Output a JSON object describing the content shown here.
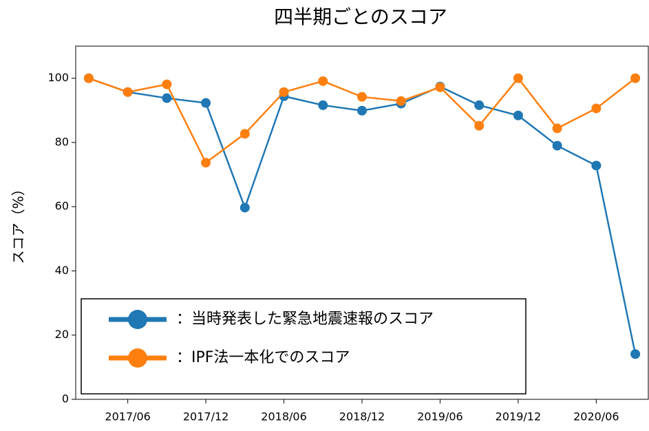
{
  "chart_data": {
    "type": "line",
    "title": "四半期ごとのスコア",
    "ylabel": "スコア（%）",
    "x": [
      "2017/03",
      "2017/06",
      "2017/09",
      "2017/12",
      "2018/03",
      "2018/06",
      "2018/09",
      "2018/12",
      "2019/03",
      "2019/06",
      "2019/09",
      "2019/12",
      "2020/03",
      "2020/06",
      "2020/09"
    ],
    "xlim": [
      "2017/02",
      "2020/10"
    ],
    "xticks": [
      "2017/06",
      "2017/12",
      "2018/06",
      "2018/12",
      "2019/06",
      "2019/12",
      "2020/06"
    ],
    "ylim": [
      0,
      110
    ],
    "yticks": [
      0,
      20,
      40,
      60,
      80,
      100
    ],
    "legend": "lower left",
    "series": [
      {
        "name": "：当時発表した緊急地震速報のスコア",
        "color": "#1f77b4",
        "values": [
          100,
          95.7,
          93.8,
          92.3,
          59.7,
          94.4,
          91.6,
          89.9,
          92.1,
          97.4,
          91.6,
          88.4,
          79,
          72.8,
          14.1
        ]
      },
      {
        "name": "：IPF法一本化でのスコア",
        "color": "#ff7f0e",
        "values": [
          100,
          95.7,
          98.1,
          73.7,
          82.7,
          95.7,
          99.1,
          94.2,
          92.9,
          97.2,
          85.2,
          100,
          84.4,
          90.6,
          100
        ]
      }
    ]
  }
}
